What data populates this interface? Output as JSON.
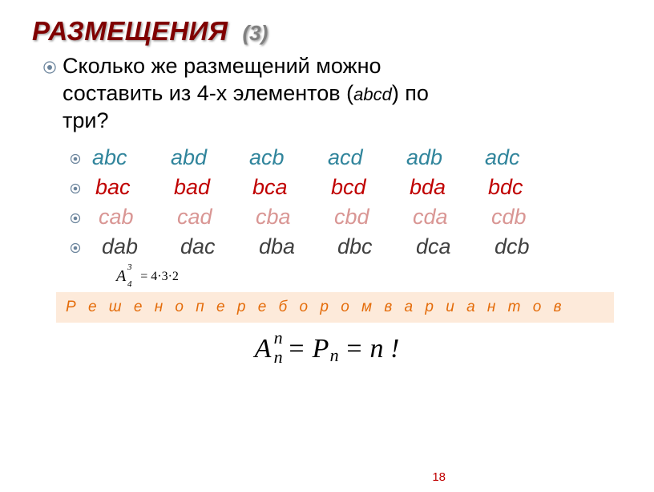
{
  "colors": {
    "title": "#800000",
    "title_num": "#808080",
    "row_a": "#31859c",
    "row_b": "#c00000",
    "row_c": "#d99694",
    "row_d": "#404040",
    "solved_bg": "#fdeada",
    "solved_text": "#e46c0a",
    "page_num": "#c00000",
    "bullet_outer": "#6b849c",
    "bullet_inner": "#6b849c"
  },
  "title": {
    "main": "РАЗМЕЩЕНИЯ",
    "num": "(3)"
  },
  "question": {
    "line1": "Сколько же размещений можно",
    "line2_a": "составить из 4-х элементов  (",
    "line2_b": "abcd",
    "line2_c": ")   по",
    "line3": "три?"
  },
  "rows": [
    {
      "items": [
        "abc",
        "abd",
        "acb",
        "acd",
        "adb",
        "adc"
      ],
      "color": "#31859c"
    },
    {
      "items": [
        "bac",
        "bad",
        "bca",
        "bcd",
        "bda",
        "bdc"
      ],
      "color": "#c00000"
    },
    {
      "items": [
        "cab",
        "cad",
        "cba",
        "cbd",
        "cda",
        "cdb"
      ],
      "color": "#d99694"
    },
    {
      "items": [
        "dab",
        "dac",
        "dba",
        "dbc",
        "dca",
        "dcb"
      ],
      "color": "#404040"
    }
  ],
  "formula_small": {
    "sup": "3",
    "sub": "4",
    "rhs": "= 4·3·2"
  },
  "solved": "Р е ш е н о   п е р е б о р о м   в а р и а н т о в",
  "formula_big": {
    "A_sup": "n",
    "A_sub": "n",
    "P_sub": "n",
    "rhs": "n !",
    "eq": "="
  },
  "page": "18"
}
